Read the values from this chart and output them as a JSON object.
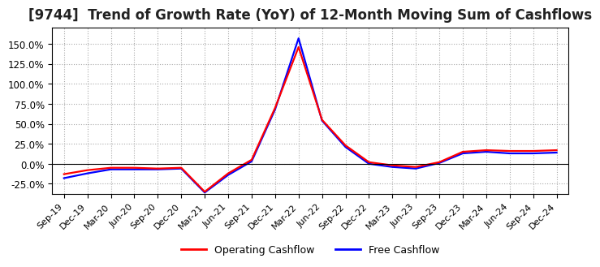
{
  "title": "[9744]  Trend of Growth Rate (YoY) of 12-Month Moving Sum of Cashflows",
  "title_fontsize": 12,
  "ylim": [
    -0.38,
    1.7
  ],
  "yticks": [
    -0.25,
    0.0,
    0.25,
    0.5,
    0.75,
    1.0,
    1.25,
    1.5
  ],
  "grid_color": "#aaaaaa",
  "background_color": "#ffffff",
  "plot_background": "#ffffff",
  "operating_color": "#ff0000",
  "free_color": "#0000ff",
  "legend_labels": [
    "Operating Cashflow",
    "Free Cashflow"
  ],
  "x_labels": [
    "Sep-19",
    "Dec-19",
    "Mar-20",
    "Jun-20",
    "Sep-20",
    "Dec-20",
    "Mar-21",
    "Jun-21",
    "Sep-21",
    "Dec-21",
    "Mar-22",
    "Jun-22",
    "Sep-22",
    "Dec-22",
    "Mar-23",
    "Jun-23",
    "Sep-23",
    "Dec-23",
    "Mar-24",
    "Jun-24",
    "Sep-24",
    "Dec-24"
  ],
  "operating_cashflow": [
    -0.13,
    -0.08,
    -0.05,
    -0.05,
    -0.06,
    -0.05,
    -0.35,
    -0.12,
    0.05,
    0.7,
    1.46,
    0.55,
    0.23,
    0.02,
    -0.02,
    -0.04,
    0.02,
    0.15,
    0.17,
    0.16,
    0.16,
    0.17
  ],
  "free_cashflow": [
    -0.18,
    -0.12,
    -0.07,
    -0.07,
    -0.07,
    -0.06,
    -0.36,
    -0.14,
    0.03,
    0.68,
    1.57,
    0.54,
    0.21,
    0.0,
    -0.04,
    -0.06,
    0.01,
    0.13,
    0.15,
    0.13,
    0.13,
    0.14
  ]
}
